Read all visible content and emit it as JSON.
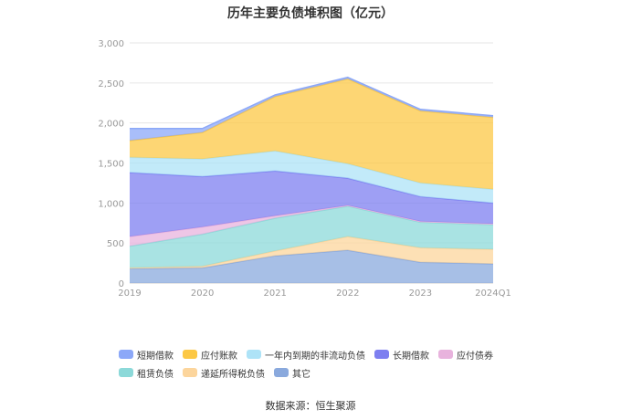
{
  "chart_data": {
    "type": "area",
    "stacked": true,
    "title": "历年主要负债堆积图（亿元）",
    "categories": [
      "2019",
      "2020",
      "2021",
      "2022",
      "2023",
      "2024Q1"
    ],
    "ylim": [
      0,
      3000
    ],
    "yticks": [
      "0",
      "500",
      "1,000",
      "1,500",
      "2,000",
      "2,500",
      "3,000"
    ],
    "grid": true,
    "legend_position": "bottom",
    "series": [
      {
        "name": "其它",
        "color": "#8aa9dd",
        "values": [
          180,
          190,
          340,
          410,
          260,
          240
        ]
      },
      {
        "name": "递延所得税负债",
        "color": "#fcd59c",
        "values": [
          10,
          20,
          60,
          170,
          180,
          180
        ]
      },
      {
        "name": "租赁负债",
        "color": "#8cd9d9",
        "values": [
          270,
          400,
          410,
          380,
          320,
          310
        ]
      },
      {
        "name": "应付债券",
        "color": "#e8b3dd",
        "values": [
          120,
          90,
          30,
          10,
          10,
          10
        ]
      },
      {
        "name": "长期借款",
        "color": "#7d7ff0",
        "values": [
          800,
          630,
          560,
          340,
          310,
          260
        ]
      },
      {
        "name": "一年内到期的非流动负债",
        "color": "#aee3f7",
        "values": [
          190,
          220,
          250,
          180,
          170,
          170
        ]
      },
      {
        "name": "应付账款",
        "color": "#fcc845",
        "values": [
          210,
          330,
          680,
          1060,
          900,
          900
        ]
      },
      {
        "name": "短期借款",
        "color": "#8ca8f8",
        "values": [
          150,
          50,
          20,
          20,
          20,
          20
        ]
      }
    ]
  },
  "legend": {
    "row1": [
      "短期借款",
      "应付账款",
      "一年内到期的非流动负债",
      "长期借款",
      "应付债券"
    ],
    "row2": [
      "租赁负债",
      "递延所得税负债",
      "其它"
    ]
  },
  "source": "数据来源：恒生聚源"
}
